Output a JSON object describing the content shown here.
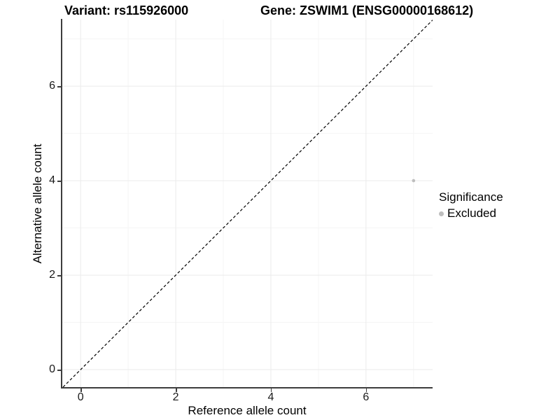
{
  "header": {
    "title_left": "Variant: rs115926000",
    "title_right": "Gene: ZSWIM1 (ENSG00000168612)"
  },
  "legend": {
    "title": "Significance",
    "items": [
      {
        "label": "Excluded",
        "color": "#bebebe"
      }
    ]
  },
  "colors": {
    "grid_major": "#ebebeb",
    "grid_minor": "#f5f5f5",
    "axis_line": "#3d3d3d",
    "tick_text": "#1a1a1a",
    "reference_line": "#000000",
    "point": "#bebebe"
  },
  "chart_data": {
    "type": "scatter",
    "title": "Variant: rs115926000 / Gene: ZSWIM1 (ENSG00000168612)",
    "xlabel": "Reference allele count",
    "ylabel": "Alternative allele count",
    "x_range": [
      -0.4,
      7.4
    ],
    "y_range": [
      -0.37,
      7.41
    ],
    "x_ticks": [
      0,
      2,
      4,
      6
    ],
    "y_ticks": [
      0,
      2,
      4,
      6
    ],
    "x_minor_ticks": [
      1,
      3,
      5,
      7
    ],
    "y_minor_ticks": [
      1,
      3,
      5,
      7
    ],
    "grid": true,
    "legend_position": "right",
    "reference_line": {
      "type": "identity y = x",
      "style": "dashed",
      "color": "#000000"
    },
    "series": [
      {
        "name": "Excluded",
        "color": "#bebebe",
        "points": [
          {
            "x": 7,
            "y": 4
          }
        ]
      }
    ]
  }
}
